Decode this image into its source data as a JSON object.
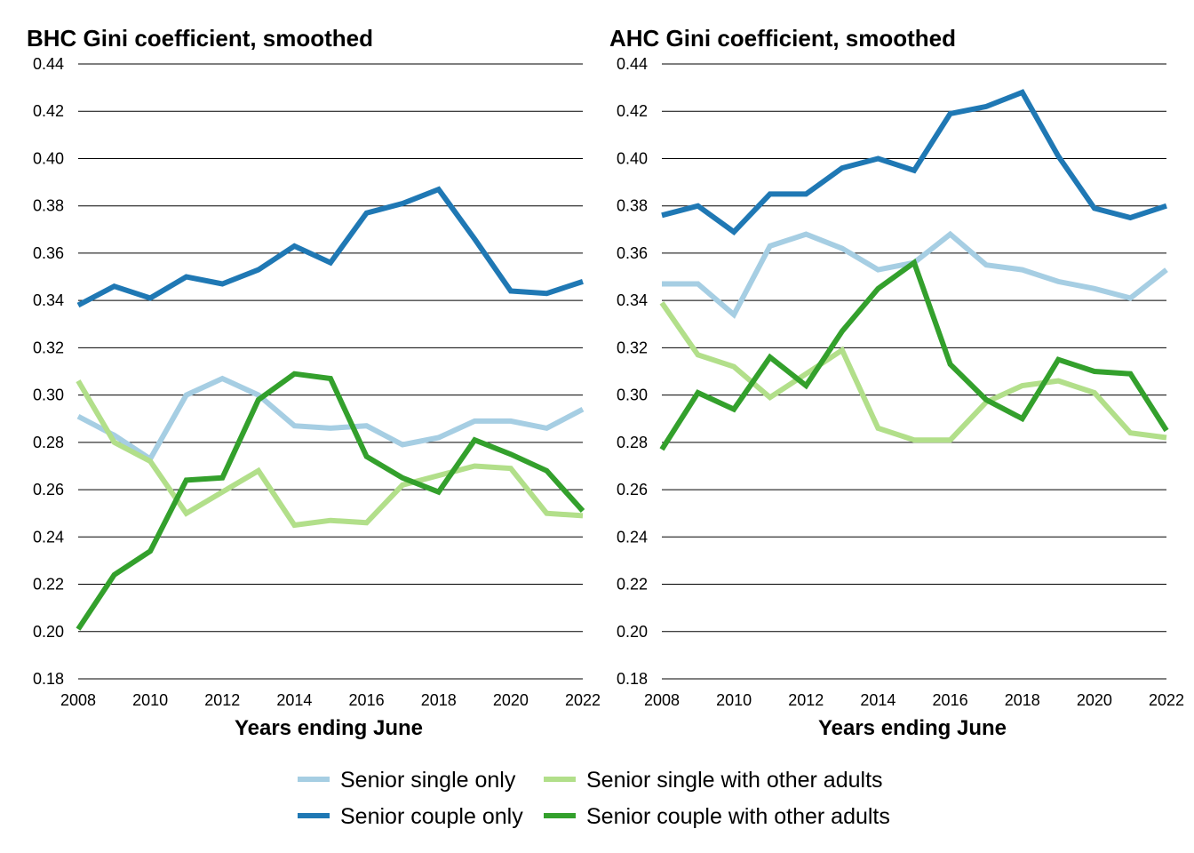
{
  "chart_data": [
    {
      "type": "line",
      "title": "BHC Gini coefficient, smoothed",
      "xlabel": "Years ending June",
      "ylabel": "",
      "x": [
        2008,
        2009,
        2010,
        2011,
        2012,
        2013,
        2014,
        2015,
        2016,
        2017,
        2018,
        2019,
        2020,
        2021,
        2022
      ],
      "xticks": [
        "2008",
        "2010",
        "2012",
        "2014",
        "2016",
        "2018",
        "2020",
        "2022"
      ],
      "ylim": [
        0.18,
        0.44
      ],
      "yticks": [
        "0.18",
        "0.20",
        "0.22",
        "0.24",
        "0.26",
        "0.28",
        "0.30",
        "0.32",
        "0.34",
        "0.36",
        "0.38",
        "0.40",
        "0.42",
        "0.44"
      ],
      "grid": true,
      "series": [
        {
          "name": "Senior single only",
          "color": "#a6cee3",
          "values": [
            0.291,
            0.283,
            0.273,
            0.3,
            0.307,
            0.3,
            0.287,
            0.286,
            0.287,
            0.279,
            0.282,
            0.289,
            0.289,
            0.286,
            0.294
          ]
        },
        {
          "name": "Senior couple only",
          "color": "#1f78b4",
          "values": [
            0.338,
            0.346,
            0.341,
            0.35,
            0.347,
            0.353,
            0.363,
            0.356,
            0.377,
            0.381,
            0.387,
            0.366,
            0.344,
            0.343,
            0.348
          ]
        },
        {
          "name": "Senior single with other adults",
          "color": "#b2df8a",
          "values": [
            0.306,
            0.28,
            0.272,
            0.25,
            0.259,
            0.268,
            0.245,
            0.247,
            0.246,
            0.262,
            0.266,
            0.27,
            0.269,
            0.25,
            0.249
          ]
        },
        {
          "name": "Senior couple with other adults",
          "color": "#33a02c",
          "values": [
            0.201,
            0.224,
            0.234,
            0.264,
            0.265,
            0.298,
            0.309,
            0.307,
            0.274,
            0.265,
            0.259,
            0.281,
            0.275,
            0.268,
            0.251
          ]
        }
      ]
    },
    {
      "type": "line",
      "title": "AHC Gini coefficient, smoothed",
      "xlabel": "Years ending June",
      "ylabel": "",
      "x": [
        2008,
        2009,
        2010,
        2011,
        2012,
        2013,
        2014,
        2015,
        2016,
        2017,
        2018,
        2019,
        2020,
        2021,
        2022
      ],
      "xticks": [
        "2008",
        "2010",
        "2012",
        "2014",
        "2016",
        "2018",
        "2020",
        "2022"
      ],
      "ylim": [
        0.18,
        0.44
      ],
      "yticks": [
        "0.18",
        "0.20",
        "0.22",
        "0.24",
        "0.26",
        "0.28",
        "0.30",
        "0.32",
        "0.34",
        "0.36",
        "0.38",
        "0.40",
        "0.42",
        "0.44"
      ],
      "grid": true,
      "series": [
        {
          "name": "Senior single only",
          "color": "#a6cee3",
          "values": [
            0.347,
            0.347,
            0.334,
            0.363,
            0.368,
            0.362,
            0.353,
            0.356,
            0.368,
            0.355,
            0.353,
            0.348,
            0.345,
            0.341,
            0.353
          ]
        },
        {
          "name": "Senior couple only",
          "color": "#1f78b4",
          "values": [
            0.376,
            0.38,
            0.369,
            0.385,
            0.385,
            0.396,
            0.4,
            0.395,
            0.419,
            0.422,
            0.428,
            0.401,
            0.379,
            0.375,
            0.38
          ]
        },
        {
          "name": "Senior single with other adults",
          "color": "#b2df8a",
          "values": [
            0.339,
            0.317,
            0.312,
            0.299,
            0.309,
            0.319,
            0.286,
            0.281,
            0.281,
            0.297,
            0.304,
            0.306,
            0.301,
            0.284,
            0.282
          ]
        },
        {
          "name": "Senior couple with other adults",
          "color": "#33a02c",
          "values": [
            0.277,
            0.301,
            0.294,
            0.316,
            0.304,
            0.327,
            0.345,
            0.356,
            0.313,
            0.298,
            0.29,
            0.315,
            0.31,
            0.309,
            0.285
          ]
        }
      ]
    }
  ],
  "legend": {
    "position": "bottom",
    "items": [
      {
        "label": "Senior single only",
        "color": "#a6cee3"
      },
      {
        "label": "Senior single with other adults",
        "color": "#b2df8a"
      },
      {
        "label": "Senior couple only",
        "color": "#1f78b4"
      },
      {
        "label": "Senior couple with other adults",
        "color": "#33a02c"
      }
    ]
  }
}
